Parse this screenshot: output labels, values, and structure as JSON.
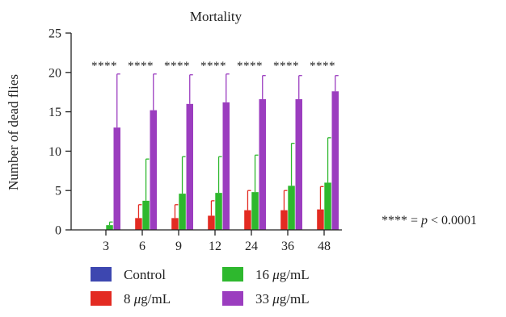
{
  "chart_data": {
    "type": "bar",
    "title": "Mortality",
    "xlabel": "",
    "ylabel": "Number of dead flies",
    "ylim": [
      0,
      25
    ],
    "yticks": [
      0,
      5,
      10,
      15,
      20,
      25
    ],
    "categories": [
      "3",
      "6",
      "9",
      "12",
      "24",
      "36",
      "48"
    ],
    "significance_label": "****",
    "significance_note": {
      "stars": "****",
      "eq": " = ",
      "p": "p",
      "rest": " < 0.0001"
    },
    "legend_position": "bottom",
    "series": [
      {
        "name": "Control",
        "name_num": "Control",
        "name_unit": "",
        "color": "#3d47b0",
        "values": [
          0,
          0,
          0,
          0,
          0,
          0,
          0
        ],
        "errors": [
          0,
          0,
          0,
          0,
          0,
          0,
          0
        ]
      },
      {
        "name": "8 μg/mL",
        "name_num": "8 ",
        "name_unit": "g/mL",
        "color": "#e32b22",
        "values": [
          0,
          1.5,
          1.5,
          1.8,
          2.5,
          2.5,
          2.6
        ],
        "errors": [
          0,
          1.7,
          1.7,
          1.9,
          2.5,
          2.5,
          2.9
        ]
      },
      {
        "name": "16 μg/mL",
        "name_num": "16 ",
        "name_unit": "g/mL",
        "color": "#2eb82e",
        "values": [
          0.6,
          3.7,
          4.6,
          4.7,
          4.8,
          5.6,
          6.0
        ],
        "errors": [
          0.4,
          5.3,
          4.7,
          4.6,
          4.7,
          5.4,
          5.7
        ]
      },
      {
        "name": "33 μg/mL",
        "name_num": "33 ",
        "name_unit": "g/mL",
        "color": "#9b3dbf",
        "values": [
          13.0,
          15.2,
          16.0,
          16.2,
          16.6,
          16.6,
          17.6
        ],
        "errors": [
          6.8,
          4.6,
          3.7,
          3.6,
          3.0,
          3.0,
          2.0
        ]
      }
    ]
  }
}
